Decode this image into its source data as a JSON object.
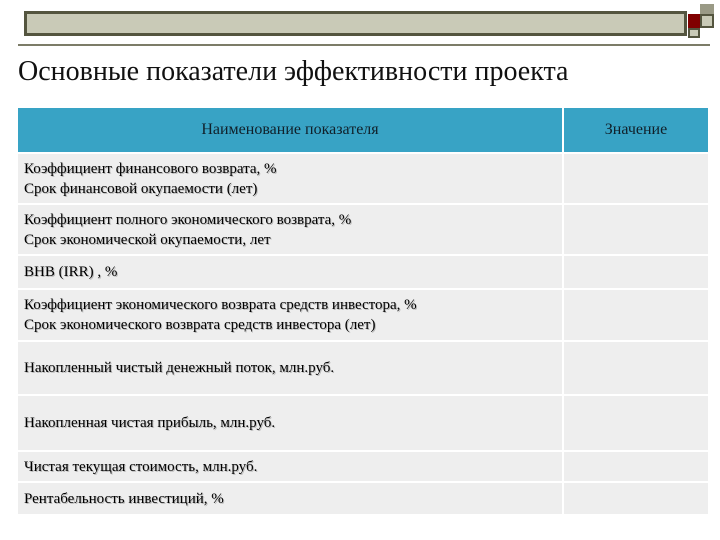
{
  "title": "Основные показатели  эффективности проекта",
  "table": {
    "headers": [
      "Наименование показателя",
      "Значение"
    ],
    "rows": [
      {
        "line1": "Коэффициент финансового возврата, %",
        "line2": "Срок финансовой окупаемости (лет)",
        "value": ""
      },
      {
        "line1": "Коэффициент полного экономического возврата, %",
        "line2": "Срок экономической окупаемости, лет",
        "value": ""
      },
      {
        "line1": "ВНВ (IRR) , %",
        "line2": "",
        "value": ""
      },
      {
        "line1": "Коэффициент экономического возврата средств инвестора, %",
        "line2": "Срок экономического возврата средств инвестора (лет)",
        "value": ""
      },
      {
        "line1": "Накопленный чистый денежный поток, млн.руб.",
        "line2": "",
        "value": ""
      },
      {
        "line1": "Накопленная чистая прибыль, млн.руб.",
        "line2": "",
        "value": ""
      },
      {
        "line1": "Чистая текущая стоимость, млн.руб.",
        "line2": "",
        "value": ""
      },
      {
        "line1": "Рентабельность инвестиций,  %",
        "line2": "",
        "value": ""
      }
    ]
  }
}
